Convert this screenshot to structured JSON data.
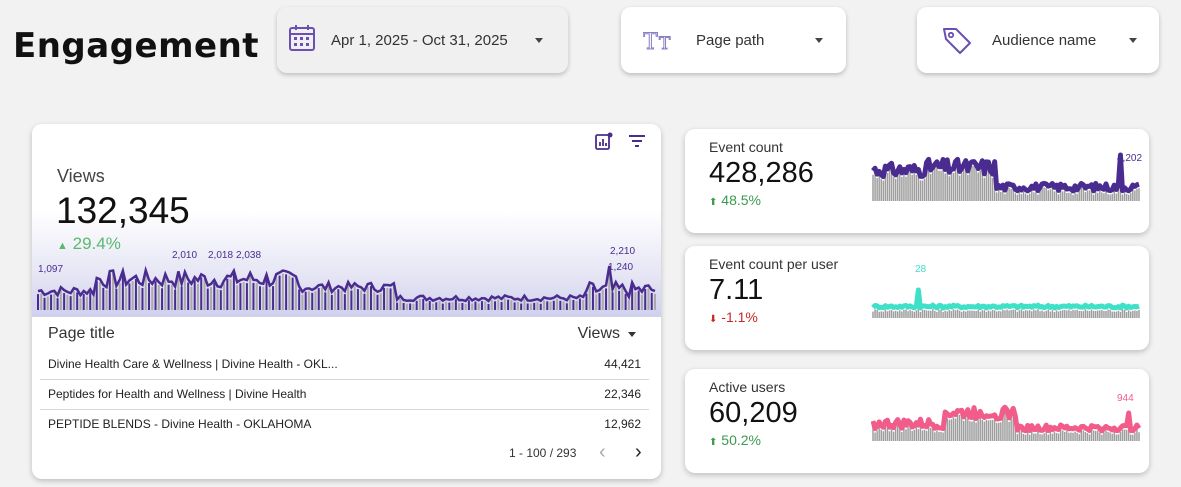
{
  "page": {
    "title": "Engagement"
  },
  "filters": {
    "date": {
      "label": "Apr 1, 2025 - Oct 31, 2025",
      "icon": "calendar-icon"
    },
    "page_path": {
      "label": "Page path",
      "icon": "text-field-icon"
    },
    "audience": {
      "label": "Audience name",
      "icon": "tag-icon"
    }
  },
  "views": {
    "label": "Views",
    "value": "132,345",
    "delta": "29.4%",
    "delta_arrow": "▲",
    "toolbar_icons": [
      "chart-settings-icon",
      "filter-icon"
    ],
    "sparkline_labels": [
      "1,097",
      "2,010",
      "2,018",
      "2,038",
      "2,210",
      "1,240"
    ]
  },
  "table": {
    "col_title": "Page title",
    "col_views": "Views",
    "rows": [
      {
        "title": "Divine Health Care & Wellness | Divine Health - OKL...",
        "views": "44,421"
      },
      {
        "title": "Peptides for Health and Wellness | Divine Health",
        "views": "22,346"
      },
      {
        "title": "PEPTIDE BLENDS - Divine Health - OKLAHOMA",
        "views": "12,962"
      }
    ],
    "pagination": "1 - 100 / 293",
    "prev": "‹",
    "next": "›"
  },
  "kpis": [
    {
      "label": "Event count",
      "value": "428,286",
      "delta": "48.5%",
      "arrow": "⬆",
      "direction": "up",
      "color": "#4a2c91",
      "spark_label": "4,202"
    },
    {
      "label": "Event count per user",
      "value": "7.11",
      "delta": "-1.1%",
      "arrow": "⬇",
      "direction": "down",
      "color": "#3ee0c8",
      "spark_label": "28"
    },
    {
      "label": "Active users",
      "value": "60,209",
      "delta": "50.2%",
      "arrow": "⬆",
      "direction": "up",
      "color": "#f25c8a",
      "spark_label": "944"
    }
  ],
  "colors": {
    "views_series": "#4a2c91",
    "positive": "#5cb86e",
    "negative": "#c62828"
  }
}
